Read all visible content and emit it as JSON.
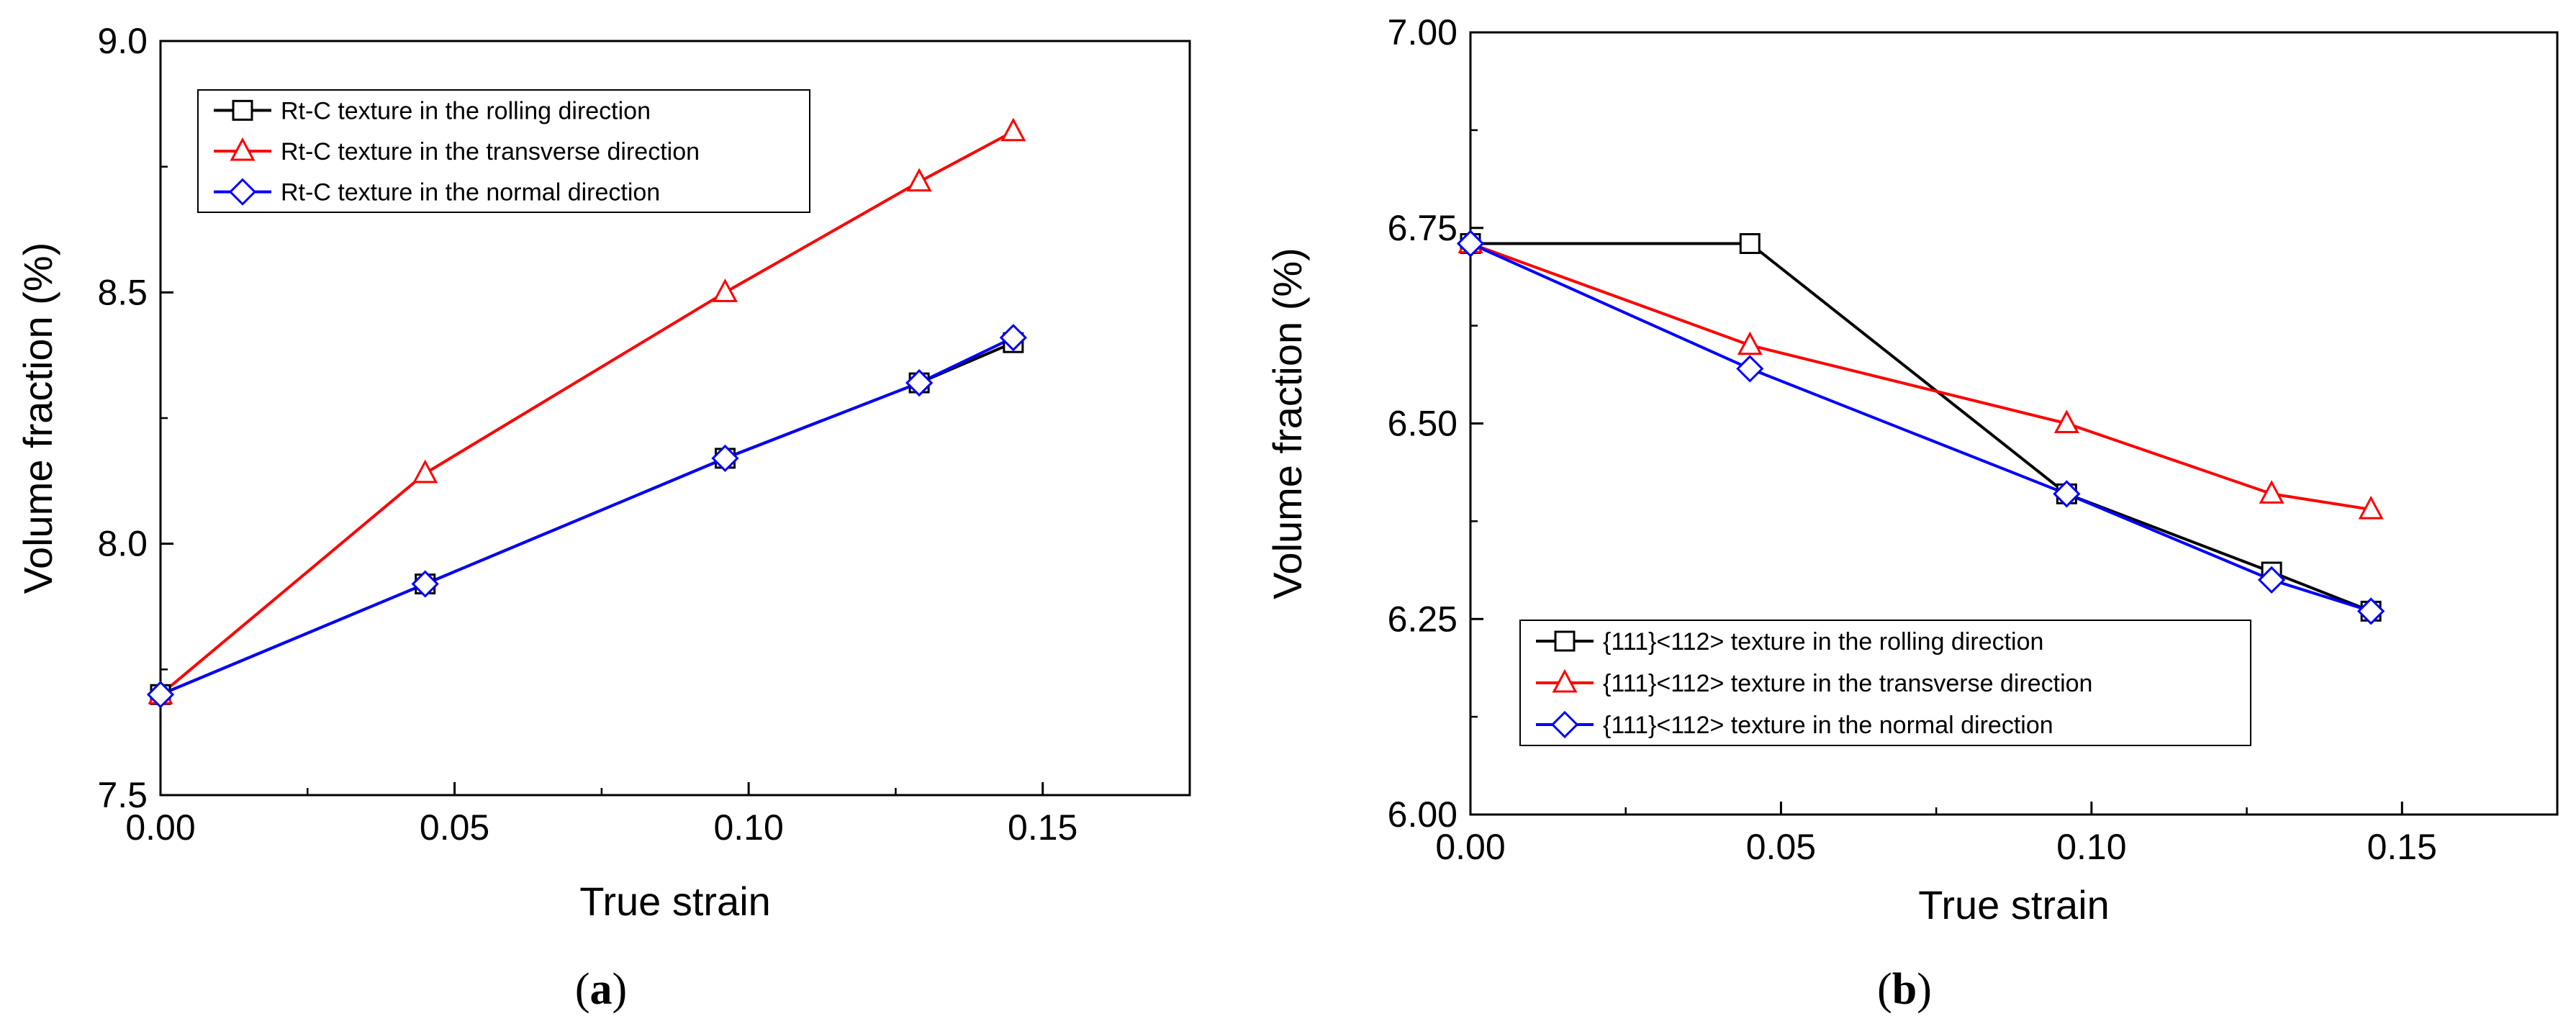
{
  "figure": {
    "captions": [
      "(a)",
      "(b)"
    ]
  },
  "chart_data": [
    {
      "type": "line",
      "panel": "a",
      "caption": "(a)",
      "xlabel": "True strain",
      "ylabel": "Volume fraction (%)",
      "xlim": [
        0.0,
        0.175
      ],
      "ylim": [
        7.5,
        9.0
      ],
      "xticks": [
        0.0,
        0.05,
        0.1,
        0.15
      ],
      "xtick_labels": [
        "0.00",
        "0.05",
        "0.10",
        "0.15"
      ],
      "yticks": [
        7.5,
        8.0,
        8.5,
        9.0
      ],
      "ytick_labels": [
        "7.5",
        "8.0",
        "8.5",
        "9.0"
      ],
      "x_minor_step": 0.025,
      "y_minor_step": 0.25,
      "grid": false,
      "legend_position": "top-left",
      "x": [
        0.0,
        0.045,
        0.096,
        0.129,
        0.145
      ],
      "series": [
        {
          "name": "Rt-C texture in the rolling direction",
          "color": "#000000",
          "marker": "square",
          "values": [
            7.7,
            7.92,
            8.17,
            8.32,
            8.4
          ]
        },
        {
          "name": "Rt-C texture in the transverse direction",
          "color": "#ff0000",
          "marker": "triangle",
          "values": [
            7.7,
            8.14,
            8.5,
            8.72,
            8.82
          ]
        },
        {
          "name": "Rt-C texture in the normal direction",
          "color": "#0000ff",
          "marker": "diamond",
          "values": [
            7.7,
            7.92,
            8.17,
            8.32,
            8.41
          ]
        }
      ]
    },
    {
      "type": "line",
      "panel": "b",
      "caption": "(b)",
      "xlabel": "True strain",
      "ylabel": "Volume fraction (%)",
      "xlim": [
        0.0,
        0.175
      ],
      "ylim": [
        6.0,
        7.0
      ],
      "xticks": [
        0.0,
        0.05,
        0.1,
        0.15
      ],
      "xtick_labels": [
        "0.00",
        "0.05",
        "0.10",
        "0.15"
      ],
      "yticks": [
        6.0,
        6.25,
        6.5,
        6.75,
        7.0
      ],
      "ytick_labels": [
        "6.00",
        "6.25",
        "6.50",
        "6.75",
        "7.00"
      ],
      "x_minor_step": 0.025,
      "y_minor_step": 0.125,
      "grid": false,
      "legend_position": "bottom-left",
      "x": [
        0.0,
        0.045,
        0.096,
        0.129,
        0.145
      ],
      "series": [
        {
          "name": "{111}<112> texture in the rolling direction",
          "color": "#000000",
          "marker": "square",
          "values": [
            6.73,
            6.73,
            6.41,
            6.31,
            6.26
          ]
        },
        {
          "name": "{111}<112> texture in the transverse direction",
          "color": "#ff0000",
          "marker": "triangle",
          "values": [
            6.73,
            6.6,
            6.5,
            6.41,
            6.39
          ]
        },
        {
          "name": "{111}<112> texture in the normal direction",
          "color": "#0000ff",
          "marker": "diamond",
          "values": [
            6.73,
            6.57,
            6.41,
            6.3,
            6.26
          ]
        }
      ]
    }
  ]
}
